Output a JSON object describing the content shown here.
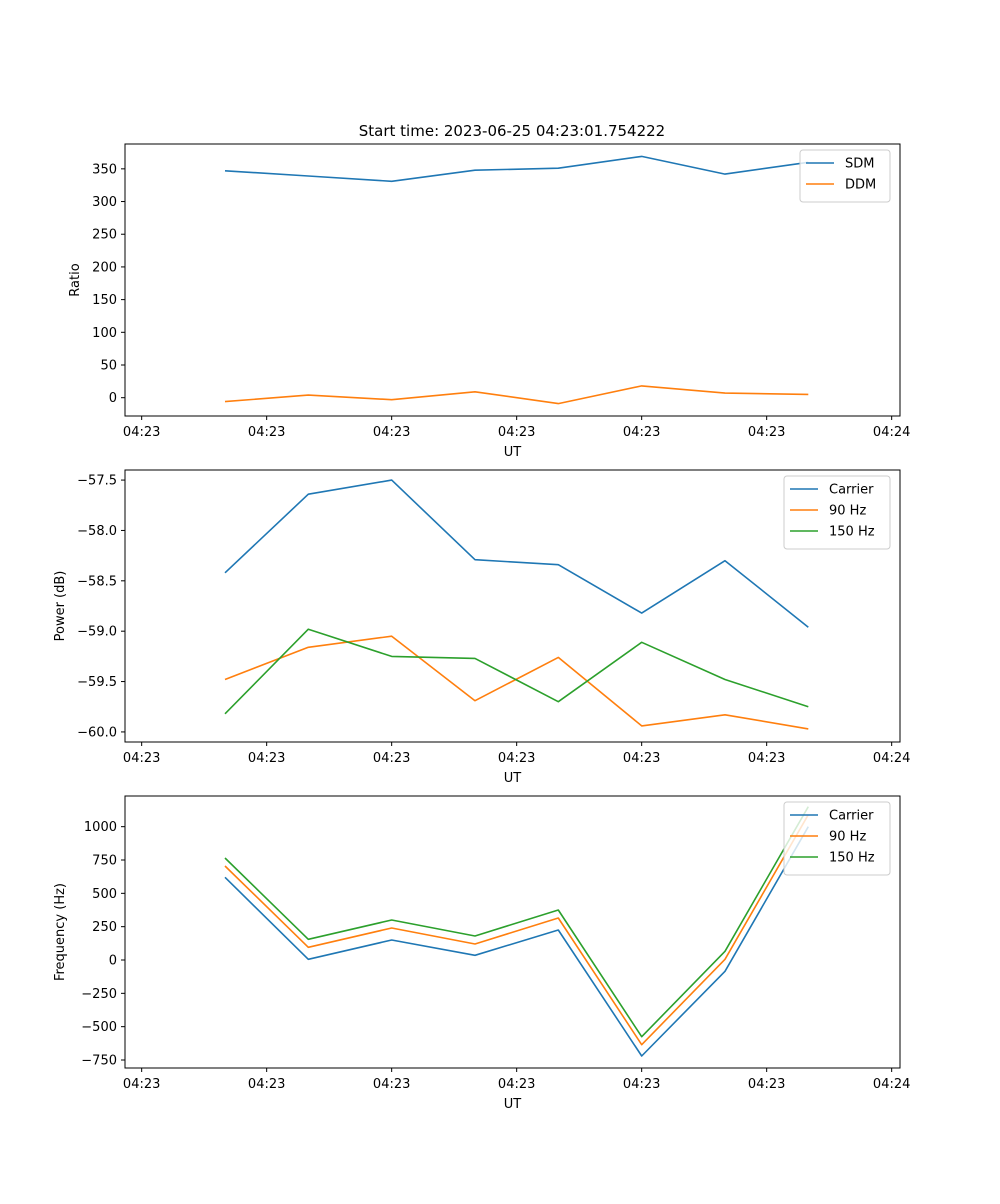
{
  "figure": {
    "title": "Start time: 2023-06-25 04:23:01.754222"
  },
  "chart_data": [
    {
      "type": "line",
      "xlabel": "UT",
      "ylabel": "Ratio",
      "x_tick_labels": [
        "04:23",
        "04:23",
        "04:23",
        "04:23",
        "04:23",
        "04:23",
        "04:24"
      ],
      "x_index": [
        1,
        2,
        3,
        4,
        5,
        6,
        7,
        8
      ],
      "xlim": [
        -0.2,
        9.1
      ],
      "x_ticks": [
        0,
        1.5,
        3,
        4.5,
        6,
        7.5,
        9
      ],
      "ylim": [
        -28,
        388
      ],
      "y_ticks": [
        0,
        50,
        100,
        150,
        200,
        250,
        300,
        350
      ],
      "grid": false,
      "legend_position": "top-right",
      "series": [
        {
          "name": "SDM",
          "color": "#1f77b4",
          "values": [
            347,
            339,
            331,
            348,
            351,
            369,
            342,
            360
          ]
        },
        {
          "name": "DDM",
          "color": "#ff7f0e",
          "values": [
            -6,
            4,
            -3,
            9,
            -9,
            18,
            7,
            5
          ]
        }
      ]
    },
    {
      "type": "line",
      "xlabel": "UT",
      "ylabel": "Power (dB)",
      "x_tick_labels": [
        "04:23",
        "04:23",
        "04:23",
        "04:23",
        "04:23",
        "04:23",
        "04:24"
      ],
      "x_index": [
        1,
        2,
        3,
        4,
        5,
        6,
        7,
        8
      ],
      "xlim": [
        -0.2,
        9.1
      ],
      "x_ticks": [
        0,
        1.5,
        3,
        4.5,
        6,
        7.5,
        9
      ],
      "ylim": [
        -60.1,
        -57.4
      ],
      "y_ticks": [
        -60.0,
        -59.5,
        -59.0,
        -58.5,
        -58.0,
        -57.5
      ],
      "y_tick_labels": [
        "−60.0",
        "−59.5",
        "−59.0",
        "−58.5",
        "−58.0",
        "−57.5"
      ],
      "grid": false,
      "legend_position": "top-right",
      "series": [
        {
          "name": "Carrier",
          "color": "#1f77b4",
          "values": [
            -58.42,
            -57.64,
            -57.5,
            -58.29,
            -58.34,
            -58.82,
            -58.3,
            -58.96
          ]
        },
        {
          "name": "90 Hz",
          "color": "#ff7f0e",
          "values": [
            -59.48,
            -59.16,
            -59.05,
            -59.69,
            -59.26,
            -59.94,
            -59.83,
            -59.97
          ]
        },
        {
          "name": "150 Hz",
          "color": "#2ca02c",
          "values": [
            -59.82,
            -58.98,
            -59.25,
            -59.27,
            -59.7,
            -59.11,
            -59.48,
            -59.75
          ]
        }
      ]
    },
    {
      "type": "line",
      "xlabel": "UT",
      "ylabel": "Frequency (Hz)",
      "x_tick_labels": [
        "04:23",
        "04:23",
        "04:23",
        "04:23",
        "04:23",
        "04:23",
        "04:24"
      ],
      "x_index": [
        1,
        2,
        3,
        4,
        5,
        6,
        7,
        8
      ],
      "xlim": [
        -0.2,
        9.1
      ],
      "x_ticks": [
        0,
        1.5,
        3,
        4.5,
        6,
        7.5,
        9
      ],
      "ylim": [
        -810,
        1230
      ],
      "y_ticks": [
        -750,
        -500,
        -250,
        0,
        250,
        500,
        750,
        1000
      ],
      "y_tick_labels": [
        "−750",
        "−500",
        "−250",
        "0",
        "250",
        "500",
        "750",
        "1000"
      ],
      "grid": false,
      "legend_position": "top-right",
      "series": [
        {
          "name": "Carrier",
          "color": "#1f77b4",
          "values": [
            620,
            5,
            150,
            35,
            225,
            -720,
            -85,
            1000
          ]
        },
        {
          "name": "90 Hz",
          "color": "#ff7f0e",
          "values": [
            705,
            95,
            240,
            120,
            315,
            -635,
            5,
            1090
          ]
        },
        {
          "name": "150 Hz",
          "color": "#2ca02c",
          "values": [
            765,
            155,
            300,
            180,
            375,
            -575,
            65,
            1150
          ]
        }
      ]
    }
  ]
}
